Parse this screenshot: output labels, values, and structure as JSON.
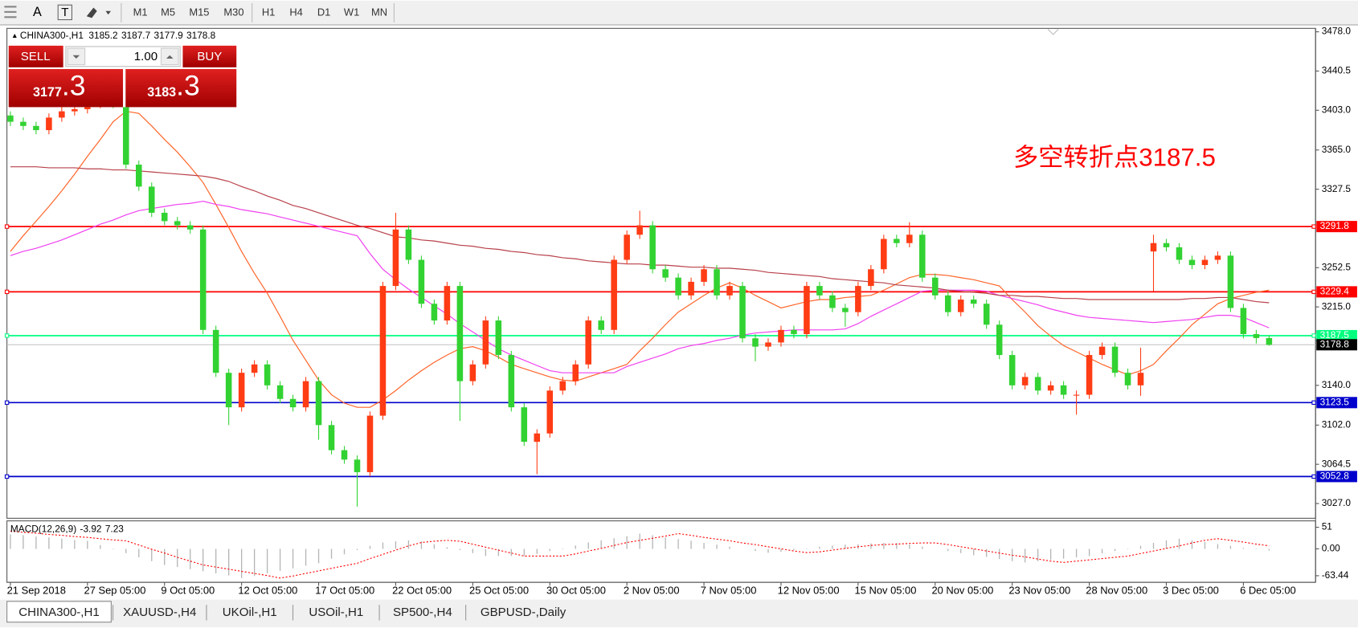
{
  "toolbar": {
    "tools": [
      "A",
      "T"
    ],
    "timeframes": [
      "M1",
      "M5",
      "M15",
      "M30",
      "H1",
      "H4",
      "D1",
      "W1",
      "MN"
    ]
  },
  "tabs": [
    "CHINA300-,H1",
    "XAUUSD-,H4",
    "UKOil-,H1",
    "USOil-,H1",
    "SP500-,H4",
    "GBPUSD-,Daily"
  ],
  "trade_panel": {
    "sell": "SELL",
    "lot": "1.00",
    "buy": "BUY",
    "sell_price": "3177",
    "sell_price_frac": ".3",
    "buy_price": "3183",
    "buy_price_frac": ".3"
  },
  "chart_data": [
    {
      "type": "candlestick",
      "title": "CHINA300-,H1",
      "annotation": "多空转折点3187.5",
      "up_color": "#ff3c14",
      "down_color": "#32d232",
      "x": [
        "21 Sep 2018",
        null,
        null,
        null,
        null,
        null,
        "27 Sep 05:00",
        null,
        null,
        null,
        null,
        null,
        "9 Oct 05:00",
        null,
        null,
        null,
        null,
        null,
        "12 Oct 05:00",
        null,
        null,
        null,
        null,
        null,
        "17 Oct 05:00",
        null,
        null,
        null,
        null,
        null,
        "22 Oct 05:00",
        null,
        null,
        null,
        null,
        null,
        "25 Oct 05:00",
        null,
        null,
        null,
        null,
        null,
        "30 Oct 05:00",
        null,
        null,
        null,
        null,
        null,
        "2 Nov 05:00",
        null,
        null,
        null,
        null,
        null,
        "7 Nov 05:00",
        null,
        null,
        null,
        null,
        null,
        "12 Nov 05:00",
        null,
        null,
        null,
        null,
        null,
        "15 Nov 05:00",
        null,
        null,
        null,
        null,
        null,
        "20 Nov 05:00",
        null,
        null,
        null,
        null,
        null,
        "23 Nov 05:00",
        null,
        null,
        null,
        null,
        null,
        "28 Nov 05:00",
        null,
        null,
        null,
        null,
        null,
        "3 Dec 05:00",
        null,
        null,
        null,
        null,
        null,
        "6 Dec 05:00",
        null,
        null
      ],
      "open": [
        3398,
        3392,
        3388,
        3384,
        3396,
        3402,
        3404,
        3409,
        3413,
        3409,
        3351,
        3330,
        3305,
        3297,
        3293,
        3289,
        3193,
        3152,
        3119,
        3152,
        3160,
        3140,
        3127,
        3119,
        3144,
        3102,
        3078,
        3069,
        3057,
        3111,
        3235,
        3289,
        3260,
        3218,
        3202,
        3235,
        3144,
        3160,
        3202,
        3169,
        3119,
        3086,
        3094,
        3135,
        3144,
        3160,
        3202,
        3193,
        3260,
        3284,
        3293,
        3251,
        3243,
        3226,
        3239,
        3251,
        3226,
        3235,
        3185,
        3177,
        3181,
        3193,
        3189,
        3235,
        3226,
        3214,
        3210,
        3235,
        3251,
        3280,
        3276,
        3284,
        3243,
        3226,
        3210,
        3222,
        3218,
        3198,
        3169,
        3140,
        3148,
        3135,
        3140,
        3131,
        3131,
        3169,
        3177,
        3152,
        3140,
        3268,
        3276,
        3272,
        3260,
        3255,
        3260,
        3264,
        3214,
        3189,
        3185.2
      ],
      "high": [
        3402,
        3396,
        3392,
        3400,
        3406,
        3408,
        3413,
        3417,
        3417,
        3413,
        3355,
        3334,
        3309,
        3301,
        3297,
        3293,
        3197,
        3156,
        3156,
        3164,
        3164,
        3144,
        3131,
        3148,
        3148,
        3106,
        3082,
        3073,
        3115,
        3239,
        3305,
        3293,
        3264,
        3222,
        3239,
        3239,
        3164,
        3206,
        3206,
        3173,
        3123,
        3098,
        3139,
        3148,
        3164,
        3206,
        3206,
        3264,
        3288,
        3307,
        3297,
        3255,
        3247,
        3243,
        3255,
        3255,
        3239,
        3239,
        3189,
        3185,
        3197,
        3197,
        3239,
        3239,
        3230,
        3218,
        3239,
        3255,
        3284,
        3284,
        3296,
        3288,
        3247,
        3230,
        3226,
        3226,
        3222,
        3202,
        3173,
        3152,
        3152,
        3144,
        3144,
        3135,
        3173,
        3181,
        3181,
        3156,
        3176,
        3284,
        3280,
        3276,
        3264,
        3264,
        3268,
        3268,
        3218,
        3193,
        3187.7
      ],
      "low": [
        3388,
        3384,
        3380,
        3380,
        3392,
        3398,
        3400,
        3405,
        3405,
        3347,
        3326,
        3301,
        3293,
        3289,
        3285,
        3189,
        3148,
        3102,
        3115,
        3148,
        3136,
        3123,
        3115,
        3115,
        3088,
        3074,
        3065,
        3024,
        3053,
        3107,
        3231,
        3256,
        3214,
        3198,
        3198,
        3106,
        3140,
        3156,
        3165,
        3115,
        3082,
        3055,
        3090,
        3131,
        3140,
        3156,
        3189,
        3189,
        3256,
        3280,
        3247,
        3239,
        3222,
        3222,
        3235,
        3222,
        3222,
        3181,
        3163,
        3173,
        3177,
        3185,
        3185,
        3222,
        3210,
        3196,
        3206,
        3231,
        3247,
        3272,
        3272,
        3239,
        3222,
        3206,
        3206,
        3214,
        3194,
        3165,
        3136,
        3136,
        3131,
        3131,
        3127,
        3112,
        3127,
        3165,
        3148,
        3136,
        3130,
        3230,
        3268,
        3256,
        3251,
        3251,
        3256,
        3210,
        3185,
        3180,
        3177.9
      ],
      "close": [
        3392,
        3388,
        3384,
        3396,
        3402,
        3404,
        3409,
        3413,
        3409,
        3351,
        3330,
        3305,
        3297,
        3293,
        3289,
        3193,
        3152,
        3119,
        3152,
        3160,
        3140,
        3127,
        3119,
        3144,
        3102,
        3078,
        3069,
        3057,
        3111,
        3235,
        3289,
        3260,
        3218,
        3202,
        3235,
        3144,
        3160,
        3202,
        3169,
        3119,
        3086,
        3094,
        3135,
        3144,
        3160,
        3202,
        3193,
        3260,
        3284,
        3293,
        3251,
        3243,
        3226,
        3239,
        3251,
        3226,
        3235,
        3185,
        3177,
        3181,
        3193,
        3189,
        3235,
        3226,
        3214,
        3210,
        3235,
        3251,
        3280,
        3276,
        3284,
        3243,
        3226,
        3210,
        3222,
        3218,
        3198,
        3169,
        3140,
        3148,
        3135,
        3140,
        3131,
        3131,
        3169,
        3177,
        3152,
        3140,
        3152,
        3276,
        3272,
        3260,
        3255,
        3260,
        3264,
        3214,
        3189,
        3185.2,
        3178.8
      ],
      "series": [
        {
          "color": "#ff6428",
          "values": [
            3268,
            3283,
            3297,
            3311,
            3326,
            3342,
            3359,
            3375,
            3392,
            3402,
            3400,
            3388,
            3375,
            3363,
            3349,
            3334,
            3313,
            3291,
            3268,
            3247,
            3228,
            3206,
            3183,
            3164,
            3145,
            3131,
            3123,
            3119,
            3119,
            3126,
            3135,
            3145,
            3154,
            3162,
            3169,
            3175,
            3177,
            3173,
            3167,
            3160,
            3156,
            3152,
            3148,
            3145,
            3144,
            3148,
            3152,
            3156,
            3160,
            3173,
            3185,
            3198,
            3210,
            3218,
            3226,
            3233,
            3238,
            3233,
            3226,
            3220,
            3214,
            3217,
            3220,
            3222,
            3222,
            3224,
            3225,
            3226,
            3231,
            3237,
            3243,
            3246,
            3246,
            3245,
            3243,
            3241,
            3238,
            3235,
            3222,
            3210,
            3197,
            3187,
            3178,
            3172,
            3166,
            3160,
            3155,
            3150,
            3154,
            3160,
            3173,
            3185,
            3198,
            3208,
            3218,
            3223,
            3226,
            3229,
            3231
          ]
        },
        {
          "color": "#f040f0",
          "values": [
            3264,
            3268,
            3271,
            3275,
            3279,
            3284,
            3289,
            3294,
            3298,
            3303,
            3307,
            3309,
            3311,
            3313,
            3314,
            3316,
            3313,
            3311,
            3308,
            3306,
            3304,
            3301,
            3298,
            3295,
            3292,
            3289,
            3286,
            3283,
            3266,
            3251,
            3241,
            3232,
            3224,
            3216,
            3208,
            3199,
            3191,
            3183,
            3175,
            3169,
            3164,
            3159,
            3154,
            3152,
            3152,
            3152,
            3152,
            3152,
            3158,
            3162,
            3166,
            3170,
            3175,
            3178,
            3180,
            3183,
            3185,
            3188,
            3190,
            3191,
            3192,
            3193,
            3193,
            3193,
            3193,
            3194,
            3199,
            3206,
            3212,
            3218,
            3224,
            3230,
            3231,
            3231,
            3231,
            3231,
            3230,
            3226,
            3223,
            3220,
            3217,
            3213,
            3210,
            3207,
            3205,
            3204,
            3203,
            3202,
            3201,
            3200,
            3201,
            3202,
            3203,
            3205,
            3207,
            3207,
            3205,
            3200,
            3195
          ]
        },
        {
          "color": "#b8404a",
          "values": [
            3349,
            3349,
            3349,
            3348,
            3348,
            3348,
            3347,
            3347,
            3346,
            3346,
            3345,
            3344,
            3343,
            3342,
            3341,
            3340,
            3338,
            3335,
            3330,
            3326,
            3321,
            3317,
            3312,
            3309,
            3305,
            3301,
            3297,
            3293,
            3290,
            3286,
            3282,
            3281,
            3279,
            3278,
            3276,
            3274,
            3273,
            3271,
            3270,
            3268,
            3267,
            3265,
            3264,
            3262,
            3261,
            3259,
            3258,
            3257,
            3256,
            3256,
            3255,
            3255,
            3254,
            3253,
            3253,
            3252,
            3252,
            3251,
            3250,
            3248,
            3247,
            3246,
            3245,
            3244,
            3242,
            3241,
            3240,
            3239,
            3238,
            3236,
            3235,
            3234,
            3233,
            3231,
            3230,
            3229,
            3228,
            3226,
            3226,
            3225,
            3225,
            3224,
            3223,
            3223,
            3222,
            3222,
            3222,
            3222,
            3222,
            3222,
            3222,
            3222,
            3223,
            3223,
            3224,
            3224,
            3222,
            3220,
            3219
          ]
        }
      ],
      "levels": [
        {
          "value": 3291.8,
          "color": "#ff0000"
        },
        {
          "value": 3229.4,
          "color": "#ff0000"
        },
        {
          "value": 3187.5,
          "color": "#00ff7f"
        },
        {
          "value": 3123.5,
          "color": "#0000cc"
        },
        {
          "value": 3052.8,
          "color": "#0000cc"
        }
      ],
      "ylim": [
        3012.9,
        3481.3
      ],
      "yticks": [
        {
          "value": 3478,
          "label": "3478.0"
        },
        3440.5,
        {
          "value": 3403,
          "label": "3403.0"
        },
        {
          "value": 3365,
          "label": "3365.0"
        },
        3327.5,
        3252.5,
        {
          "value": 3215,
          "label": "3215.0"
        },
        {
          "value": 3140,
          "label": "3140.0"
        },
        {
          "value": 3102,
          "label": "3102.0"
        },
        3064.5,
        {
          "value": 3027,
          "label": "3027.0"
        }
      ],
      "grid": false
    },
    {
      "type": "macd",
      "title": "MACD(12,26,9)",
      "histogram_color": "#b4b4b4",
      "signal_color": "#ff0000",
      "histogram": [
        34,
        32,
        29,
        27,
        24,
        21,
        19,
        9,
        -1,
        -10,
        -20,
        -29,
        -38,
        -43,
        -48,
        -53,
        -58,
        -63,
        -69,
        -64,
        -58,
        -52,
        -46,
        -40,
        -34,
        -23,
        -13,
        -3,
        7,
        15,
        18,
        20,
        18,
        11,
        4,
        -3,
        -10,
        -17,
        -17,
        -17,
        -17,
        -12,
        -5,
        1,
        8,
        15,
        20,
        25,
        30,
        36,
        32,
        27,
        23,
        19,
        14,
        10,
        5,
        0,
        -5,
        -9,
        -7,
        -3,
        1,
        5,
        8,
        10,
        11,
        13,
        14,
        14,
        10,
        5,
        0,
        -5,
        -10,
        -15,
        -19,
        -24,
        -29,
        -32,
        -29,
        -26,
        -23,
        -20,
        -17,
        -11,
        -5,
        1,
        7,
        14,
        20,
        24,
        20,
        16,
        11,
        7,
        2,
        -1,
        -3.92
      ],
      "signal": [
        42,
        39,
        37,
        34,
        32,
        29,
        27,
        24,
        21,
        19,
        9,
        -1,
        -10,
        -20,
        -29,
        -38,
        -43,
        -48,
        -53,
        -58,
        -63,
        -69,
        -64,
        -58,
        -52,
        -46,
        -40,
        -34,
        -23,
        -13,
        -3,
        7,
        15,
        18,
        20,
        18,
        11,
        4,
        -3,
        -10,
        -17,
        -17,
        -17,
        -17,
        -12,
        -5,
        1,
        8,
        15,
        20,
        25,
        30,
        36,
        32,
        27,
        23,
        19,
        14,
        10,
        5,
        0,
        -5,
        -9,
        -7,
        -3,
        1,
        5,
        8,
        10,
        11,
        13,
        14,
        14,
        10,
        5,
        0,
        -5,
        -10,
        -15,
        -19,
        -24,
        -29,
        -32,
        -29,
        -26,
        -23,
        -20,
        -17,
        -11,
        -5,
        1,
        7,
        14,
        20,
        24,
        20,
        16,
        11,
        7.23
      ],
      "ylim": [
        -79,
        64
      ],
      "yticks": [
        51,
        {
          "value": 0,
          "label": "0.00"
        },
        -63.44
      ]
    }
  ]
}
